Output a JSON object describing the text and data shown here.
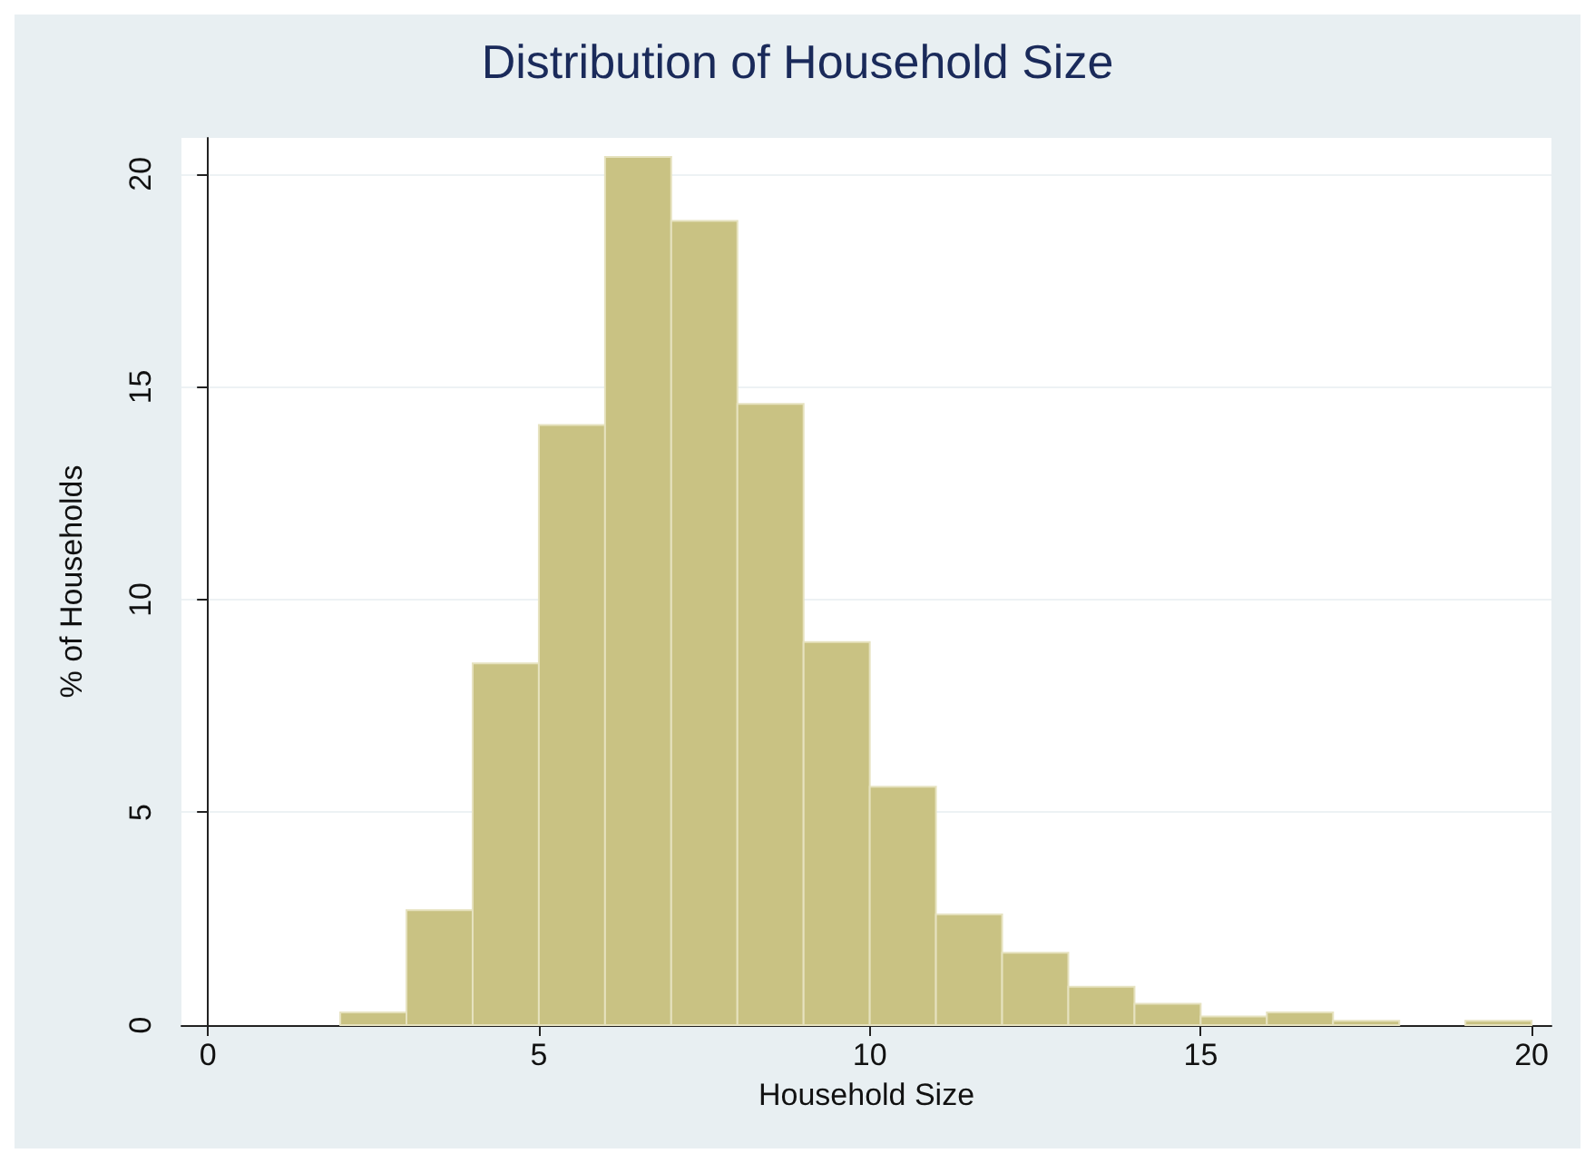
{
  "chart_data": {
    "type": "histogram",
    "title": "Distribution of Household Size",
    "xlabel": "Household Size",
    "ylabel": "% of Households",
    "bins": [
      2,
      3,
      4,
      5,
      6,
      7,
      8,
      9,
      10,
      11,
      12,
      13,
      14,
      15,
      16,
      17,
      18,
      19,
      20
    ],
    "values": [
      0.3,
      2.7,
      8.5,
      14.1,
      20.4,
      18.9,
      14.6,
      9.0,
      5.6,
      2.6,
      1.7,
      0.9,
      0.5,
      0.2,
      0.3,
      0.1,
      0,
      0.1
    ],
    "color": "#c9c283",
    "xlim": [
      -0.4,
      20.3
    ],
    "xticks": [
      0,
      5,
      10,
      15,
      20
    ],
    "ylim": [
      0,
      20.85
    ],
    "yticks": [
      0,
      5,
      10,
      15,
      20
    ],
    "grid": "y"
  }
}
